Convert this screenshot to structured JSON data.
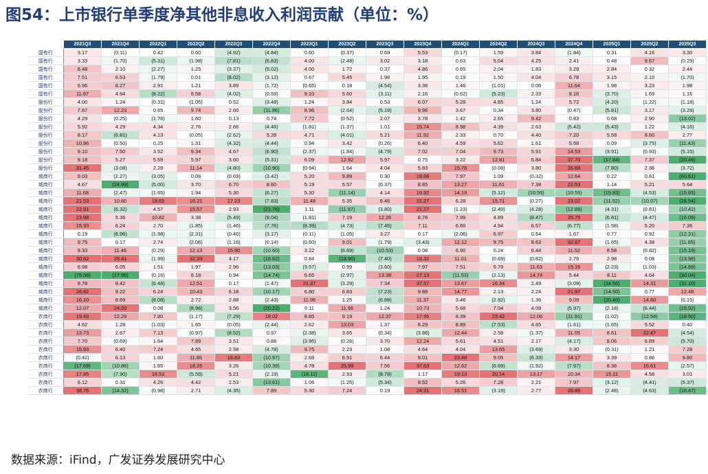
{
  "title": "图54：上市银行单季度净其他非息收入利润贡献（单位：%）",
  "source": "数据来源：iFind，广发证券发展研究中心",
  "colors": {
    "header_bg": "#1f4e79",
    "positive": "#e57373",
    "negative": "#4caf6e",
    "title": "#1f3d7a"
  },
  "chart_data": {
    "type": "heatmap",
    "unit": "%",
    "columns": [
      "2021Q3",
      "2021Q4",
      "2022Q1",
      "2022Q2",
      "2022Q3",
      "2022Q4",
      "2023Q1",
      "2023Q2",
      "2023Q3",
      "2023Q4",
      "2024Q1",
      "2024Q2",
      "2024Q3",
      "2024Q4",
      "2025Q1",
      "2025Q2",
      "2025Q3"
    ],
    "rows": [
      {
        "label": "国有行",
        "values": [
          3.17,
          -0.11,
          0.42,
          0.6,
          -4.92,
          -4.84,
          0.6,
          -0.37,
          0.69,
          5.53,
          -0.17,
          1.59,
          3.84,
          -1.84,
          0.31,
          4.16,
          3.3
        ]
      },
      {
        "label": "国有行",
        "values": [
          3.33,
          -1.7,
          -5.31,
          -1.98,
          -7.81,
          -6.83,
          4.0,
          -2.48,
          3.02,
          3.18,
          0.63,
          5.04,
          4.25,
          2.41,
          0.48,
          9.67,
          -0.29
        ]
      },
      {
        "label": "国有行",
        "values": [
          8.48,
          2.1,
          -2.27,
          1.25,
          -3.37,
          -5.02,
          4.0,
          1.72,
          0.37,
          4.86,
          0.65,
          2.04,
          1.83,
          3.28,
          2.84,
          0.32,
          2.44
        ]
      },
      {
        "label": "国有行",
        "values": [
          7.51,
          6.53,
          -1.79,
          0.01,
          -8.02,
          -3.12,
          0.67,
          5.45,
          1.98,
          1.95,
          0.19,
          1.5,
          4.04,
          6.78,
          3.15,
          2.1,
          -1.7
        ]
      },
      {
        "label": "国有行",
        "values": [
          6.96,
          8.27,
          2.91,
          1.21,
          3.89,
          -1.72,
          -0.65,
          0.18,
          -4.54,
          3.38,
          1.46,
          -1.01,
          0.06,
          11.64,
          1.98,
          3.23,
          1.98
        ]
      },
      {
        "label": "国有行",
        "values": [
          11.67,
          4.84,
          -8.22,
          6.58,
          -4.02,
          -0.59,
          9.1,
          5.6,
          -3.11,
          2.16,
          -0.62,
          -5.23,
          2.33,
          8.16,
          -3.7,
          1.69,
          1.16
        ]
      },
      {
        "label": "股份行",
        "values": [
          4.0,
          1.24,
          -0.31,
          -1.05,
          0.52,
          -3.48,
          1.24,
          3.84,
          0.53,
          6.07,
          5.28,
          4.85,
          1.24,
          5.72,
          -4.2,
          -1.22,
          -1.18
        ]
      },
      {
        "label": "股份行",
        "values": [
          7.67,
          12.23,
          0.65,
          9.74,
          2.6,
          -11.96,
          8.96,
          -2.64,
          -5.19,
          9.96,
          3.67,
          0.34,
          3.8,
          -0.47,
          -5.81,
          3.17,
          -3.28
        ]
      },
      {
        "label": "股份行",
        "values": [
          4.29,
          -0.25,
          -1.76,
          1.6,
          0.13,
          0.74,
          7.72,
          -0.52,
          2.07,
          3.78,
          1.42,
          2.65,
          9.42,
          0.83,
          0.68,
          2.9,
          -13.02
        ]
      },
      {
        "label": "股份行",
        "values": [
          5.92,
          4.29,
          4.34,
          2.76,
          2.66,
          -4.46,
          -1.81,
          -1.37,
          1.01,
          15.74,
          8.98,
          4.39,
          2.63,
          -5.42,
          -5.43,
          1.22,
          -4.16
        ]
      },
      {
        "label": "股份行",
        "values": [
          8.17,
          -6.81,
          4.13,
          -0.05,
          -2.62,
          5.39,
          4.71,
          -4.01,
          5.21,
          11.92,
          2.33,
          0.7,
          4.4,
          7.2,
          5.58,
          8.6,
          2.77
        ]
      },
      {
        "label": "股份行",
        "values": [
          10.96,
          -0.5,
          0.25,
          1.31,
          -4.32,
          -4.44,
          0.94,
          3.42,
          -0.26,
          6.4,
          4.59,
          5.62,
          1.61,
          5.58,
          0.09,
          -3.75,
          -11.43
        ]
      },
      {
        "label": "股份行",
        "values": [
          9.1,
          7.5,
          3.52,
          9.34,
          4.67,
          -6.9,
          -2.37,
          -1.84,
          -4.79,
          7.02,
          7.04,
          9.73,
          5.91,
          14.53,
          -3.91,
          -0.93,
          -5.15
        ]
      },
      {
        "label": "股份行",
        "values": [
          9.18,
          5.27,
          5.59,
          5.97,
          3.6,
          -5.31,
          6.09,
          12.92,
          5.97,
          0.75,
          3.22,
          12.81,
          6.84,
          37.7,
          -17.84,
          7.37,
          -20.46
        ]
      },
      {
        "label": "股份行",
        "values": [
          31.45,
          -3.08,
          2.28,
          11.14,
          -4.8,
          -10.9,
          -0.94,
          1.64,
          4.04,
          5.83,
          15.76,
          -0.08,
          3.8,
          26.68,
          -7.8,
          2.36,
          -3.72
        ]
      },
      {
        "label": "城商行",
        "values": [
          9.03,
          -2.27,
          -3.05,
          0.08,
          -0.69,
          -3.42,
          5.2,
          9.89,
          0.3,
          18.88,
          7.97,
          1.09,
          -0.32,
          12.64,
          0.22,
          0.81,
          -60.61
        ]
      },
      {
        "label": "城商行",
        "values": [
          4.67,
          -24.99,
          -5.0,
          3.7,
          6.7,
          8.6,
          5.19,
          5.57,
          -0.37,
          8.85,
          13.27,
          11.61,
          7.38,
          22.53,
          1.14,
          5.21,
          5.64
        ]
      },
      {
        "label": "城商行",
        "values": [
          11.68,
          -2.47,
          -1.65,
          1.94,
          5.3,
          -6.27,
          5.3,
          -11.14,
          4.14,
          16.92,
          14.19,
          -5.12,
          -10.55,
          -10.55,
          -15.83,
          -4.53,
          -15.65
        ]
      },
      {
        "label": "城商行",
        "values": [
          21.53,
          10.8,
          18.65,
          16.21,
          17.23,
          -7.83,
          11.48,
          5.35,
          8.46,
          21.27,
          6.28,
          15.71,
          -0.27,
          23.02,
          -11.52,
          -10.07,
          -28.54
        ]
      },
      {
        "label": "城商行",
        "values": [
          22.91,
          -6.32,
          4.57,
          15.57,
          2.93,
          -21.76,
          1.11,
          -11.97,
          -3.8,
          21.27,
          -1.23,
          -2.4,
          -4.28,
          -12.89,
          -4.31,
          -0.81,
          -10.42
        ]
      },
      {
        "label": "城商行",
        "values": [
          23.98,
          5.36,
          10.82,
          3.38,
          -5.49,
          -9.04,
          -1.81,
          7.19,
          12.26,
          8.76,
          7.99,
          4.89,
          -8.47,
          25.75,
          -6.81,
          -4.47,
          -16.09
        ]
      },
      {
        "label": "城商行",
        "values": [
          15.93,
          6.24,
          2.7,
          -1.85,
          -1.46,
          -7.76,
          -8.39,
          -4.73,
          -7.45,
          7.11,
          6.6,
          4.94,
          6.57,
          -6.77,
          -1.58,
          5.2,
          7.36
        ]
      },
      {
        "label": "城商行",
        "values": [
          0.19,
          -6.96,
          -1.98,
          -2.31,
          -0.46,
          -3.17,
          -0.11,
          -1.05,
          3.27,
          0.17,
          -2.06,
          6.97,
          0.54,
          1.67,
          0.77,
          0.92,
          -12.31
        ]
      },
      {
        "label": "城商行",
        "values": [
          9.75,
          0.17,
          2.74,
          -2.06,
          -1.16,
          -0.14,
          -0.6,
          9.01,
          -1.79,
          -3.43,
          12.12,
          9.75,
          8.63,
          32.67,
          -1.65,
          4.38,
          -11.85
        ]
      },
      {
        "label": "城商行",
        "values": [
          9.33,
          11.46,
          -0.29,
          12.13,
          15.9,
          -10.6,
          3.22,
          -6.69,
          -10.53,
          0.08,
          6.9,
          0.24,
          6.44,
          11.52,
          8.58,
          -0.82,
          -15.19
        ]
      },
      {
        "label": "城商行",
        "values": [
          30.62,
          28.41,
          -1.99,
          32.33,
          4.17,
          -16.62,
          0.84,
          -18.9,
          -7.4,
          18.32,
          11.01,
          -0.69,
          -0.82,
          2.76,
          2.98,
          0.08,
          -13.98
        ]
      },
      {
        "label": "城商行",
        "values": [
          6.98,
          6.05,
          1.51,
          1.97,
          2.96,
          -13.03,
          -3.57,
          0.99,
          -3.6,
          7.97,
          7.51,
          5.79,
          11.63,
          15.16,
          -2.23,
          -1.03,
          -14.89
        ]
      },
      {
        "label": "城商行",
        "values": [
          -75.06,
          -27.96,
          -0.16,
          6.18,
          0.94,
          -14.74,
          6.65,
          -2.97,
          13.38,
          27.13,
          -11.53,
          -2.13,
          14.74,
          5.44,
          8.11,
          4.64,
          -30.04
        ]
      },
      {
        "label": "城商行",
        "values": [
          9.78,
          8.42,
          -6.48,
          12.51,
          0.17,
          -1.47,
          21.37,
          -3.29,
          7.34,
          37.57,
          13.67,
          16.34,
          2.49,
          -3.09,
          -34.56,
          14.31,
          -32.1
        ]
      },
      {
        "label": "城商行",
        "values": [
          28.82,
          9.22,
          6.24,
          10.43,
          6.18,
          -10.17,
          6.8,
          6.83,
          -7.23,
          9.88,
          14.77,
          2.13,
          2.24,
          21.97,
          -14.5,
          0.77,
          12.48
        ]
      },
      {
        "label": "城商行",
        "values": [
          16.1,
          8.69,
          -8.08,
          2.72,
          2.88,
          -2.43,
          11.06,
          1.25,
          -6.88,
          11.37,
          3.46,
          -2.82,
          1.36,
          9.09,
          -20.4,
          14.6,
          -0.15
        ]
      },
      {
        "label": "城商行",
        "values": [
          12.07,
          24.2,
          0.08,
          -8.96,
          3.56,
          -20.22,
          0.11,
          11.96,
          1.24,
          10.73,
          5.68,
          7.04,
          4.09,
          -5.97,
          -2.18,
          -6.44,
          -15.92
        ]
      },
      {
        "label": "农商行",
        "values": [
          19.43,
          12.29,
          7.8,
          -1.17,
          -7.29,
          18.02,
          8.85,
          9.19,
          12.37,
          17.95,
          8.39,
          23.42,
          12.06,
          -11.91,
          -1.02,
          -12.58,
          -18.5
        ]
      },
      {
        "label": "农商行",
        "values": [
          4.62,
          1.28,
          -1.03,
          1.65,
          -0.05,
          -2.44,
          2.62,
          13.03,
          1.37,
          8.29,
          8.89,
          -7.53,
          4.65,
          -1.61,
          -1.65,
          5.52,
          0.4
        ]
      },
      {
        "label": "农商行",
        "values": [
          13.73,
          2.67,
          7.13,
          -0.97,
          -8.52,
          0.97,
          -2.38,
          3.65,
          -0.34,
          -3.86,
          12.44,
          2.58,
          -1.37,
          11.05,
          8.61,
          22.47,
          -4.54
        ]
      },
      {
        "label": "农商行",
        "values": [
          7.7,
          -0.69,
          1.64,
          7.89,
          3.51,
          0.88,
          -3.95,
          -0.26,
          3.7,
          12.24,
          5.61,
          4.51,
          2.17,
          -4.17,
          8.06,
          6.89,
          -5.7
        ]
      },
      {
        "label": "农商行",
        "values": [
          15.93,
          6.4,
          7.24,
          4.65,
          2.58,
          -4.78,
          9.75,
          2.23,
          1.08,
          4.64,
          4.04,
          13.65,
          -3.69,
          3.3,
          -0.31,
          1.21,
          7.28
        ]
      },
      {
        "label": "农商行",
        "values": [
          -0.42,
          6.13,
          1.6,
          11.85,
          18.83,
          -10.97,
          2.68,
          6.91,
          6.44,
          9.01,
          23.48,
          9.05,
          -6.33,
          14.17,
          3.39,
          0.86,
          9.8
        ]
      },
      {
        "label": "农商行",
        "values": [
          -17.69,
          -10.86,
          1.65,
          16.25,
          3.26,
          -10.39,
          4.78,
          25.99,
          7.56,
          37.63,
          12.62,
          -6.69,
          -1.92,
          -7.97,
          8.38,
          16.61,
          -2.57
        ]
      },
      {
        "label": "农商行",
        "values": [
          17.85,
          -7.9,
          16.53,
          -5.59,
          5.21,
          -2.19,
          -18.11,
          2.93,
          -8.78,
          1.17,
          19.13,
          20.14,
          13.17,
          10.34,
          15.11,
          4.58,
          3.01
        ]
      },
      {
        "label": "农商行",
        "values": [
          6.12,
          0.31,
          4.26,
          4.42,
          2.53,
          -13.61,
          1.06,
          -1.25,
          -5.34,
          9.52,
          5.26,
          7.28,
          2.21,
          7.97,
          -3.12,
          -4.41,
          -5.37
        ]
      },
      {
        "label": "农商行",
        "values": [
          38.76,
          -14.32,
          -0.98,
          2.71,
          -4.35,
          7.89,
          5.3,
          7.24,
          0.19,
          24.31,
          16.51,
          -3.19,
          2.77,
          28.86,
          -2.48,
          -4.63,
          -16.47
        ]
      }
    ]
  }
}
